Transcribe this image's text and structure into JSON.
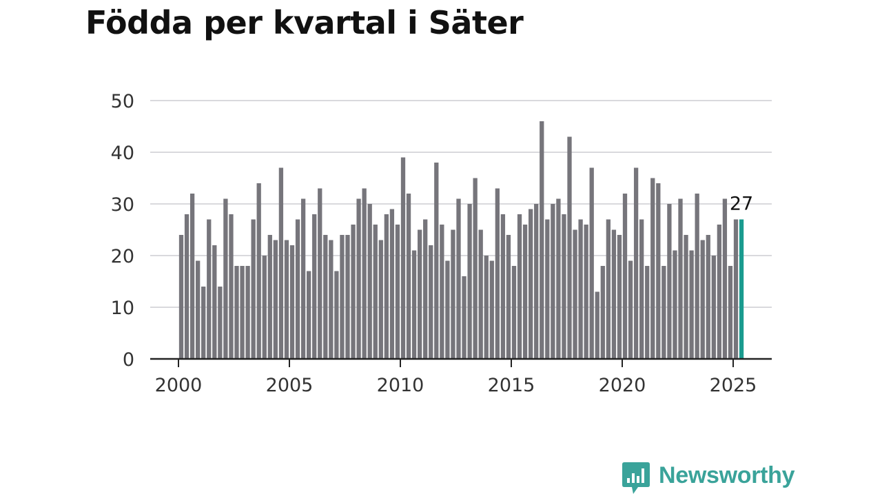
{
  "chart_data": {
    "type": "bar",
    "title": "Födda per kvartal i Säter",
    "xlabel": "",
    "ylabel": "",
    "ylim": [
      0,
      50
    ],
    "y_ticks": [
      "0",
      "10",
      "20",
      "30",
      "40",
      "50"
    ],
    "x_ticks": [
      "2000",
      "2005",
      "2010",
      "2015",
      "2020",
      "2025"
    ],
    "x_start": "2000 Q1",
    "grid": true,
    "highlight_label": "27",
    "colors": {
      "bar": "#76757b",
      "highlight": "#1a9b8f",
      "grid": "#d9d9dd",
      "axis": "#222222"
    },
    "values": [
      24,
      28,
      32,
      19,
      14,
      27,
      22,
      14,
      31,
      28,
      18,
      18,
      18,
      27,
      34,
      20,
      24,
      23,
      37,
      23,
      22,
      27,
      31,
      17,
      28,
      33,
      24,
      23,
      17,
      24,
      24,
      26,
      31,
      33,
      30,
      26,
      23,
      28,
      29,
      26,
      39,
      32,
      21,
      25,
      27,
      22,
      38,
      26,
      19,
      25,
      31,
      16,
      30,
      35,
      25,
      20,
      19,
      33,
      28,
      24,
      18,
      28,
      26,
      29,
      30,
      46,
      27,
      30,
      31,
      28,
      43,
      25,
      27,
      26,
      37,
      13,
      18,
      27,
      25,
      24,
      32,
      19,
      37,
      27,
      18,
      35,
      34,
      18,
      30,
      21,
      31,
      24,
      21,
      32,
      23,
      24,
      20,
      26,
      31,
      18,
      27,
      27
    ]
  },
  "brand": {
    "name": "Newsworthy",
    "icon": "newsworthy-logo-icon",
    "color": "#3aa39a"
  }
}
